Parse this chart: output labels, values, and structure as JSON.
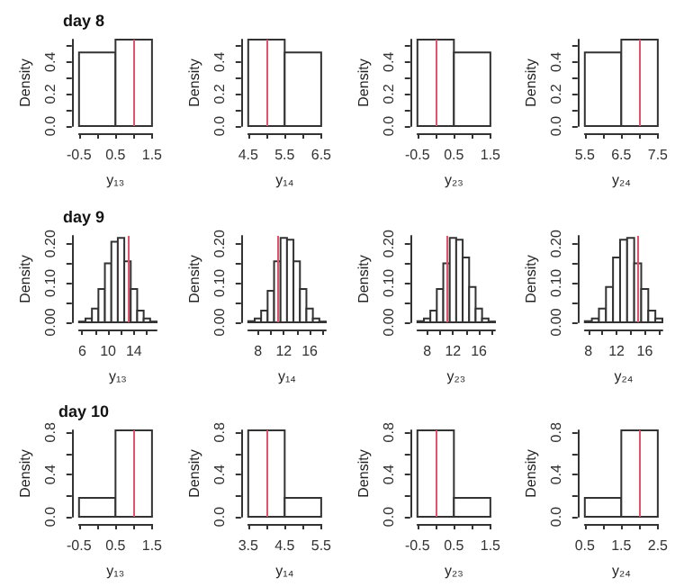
{
  "chart_data": [
    {
      "type": "histogram",
      "title": "day 8",
      "xlabel": "y₁₃",
      "ylabel": "Density",
      "bins": [
        -0.5,
        0.5,
        1.5
      ],
      "values": [
        0.46,
        0.54
      ],
      "xlim": [
        -0.5,
        1.5
      ],
      "xticks": [
        -0.5,
        {
          "value": 0,
          "label": null
        },
        0.5,
        {
          "value": 1,
          "label": null
        },
        1.5
      ],
      "ylim": [
        0,
        0.54
      ],
      "yticks": [
        {
          "value": 0,
          "label": "0.0"
        },
        {
          "value": 0.1,
          "label": null
        },
        {
          "value": 0.2,
          "label": "0.2"
        },
        {
          "value": 0.3,
          "label": null
        },
        {
          "value": 0.4,
          "label": "0.4"
        },
        {
          "value": 0.5,
          "label": null
        }
      ],
      "ref_lines": [
        {
          "axis": "x",
          "value": 1,
          "color": "#df536b"
        }
      ]
    },
    {
      "type": "histogram",
      "xlabel": "y₁₄",
      "ylabel": "Density",
      "bins": [
        4.5,
        5.5,
        6.5
      ],
      "values": [
        0.54,
        0.46
      ],
      "xlim": [
        4.5,
        6.5
      ],
      "xticks": [
        4.5,
        {
          "value": 5,
          "label": null
        },
        5.5,
        {
          "value": 6,
          "label": null
        },
        6.5
      ],
      "ylim": [
        0,
        0.54
      ],
      "yticks": [
        {
          "value": 0,
          "label": "0.0"
        },
        {
          "value": 0.1,
          "label": null
        },
        {
          "value": 0.2,
          "label": "0.2"
        },
        {
          "value": 0.3,
          "label": null
        },
        {
          "value": 0.4,
          "label": "0.4"
        },
        {
          "value": 0.5,
          "label": null
        }
      ],
      "ref_lines": [
        {
          "axis": "x",
          "value": 5,
          "color": "#df536b"
        }
      ]
    },
    {
      "type": "histogram",
      "xlabel": "y₂₃",
      "ylabel": "Density",
      "bins": [
        -0.5,
        0.5,
        1.5
      ],
      "values": [
        0.54,
        0.46
      ],
      "xlim": [
        -0.5,
        1.5
      ],
      "xticks": [
        -0.5,
        {
          "value": 0,
          "label": null
        },
        0.5,
        {
          "value": 1,
          "label": null
        },
        1.5
      ],
      "ylim": [
        0,
        0.54
      ],
      "yticks": [
        {
          "value": 0,
          "label": "0.0"
        },
        {
          "value": 0.1,
          "label": null
        },
        {
          "value": 0.2,
          "label": "0.2"
        },
        {
          "value": 0.3,
          "label": null
        },
        {
          "value": 0.4,
          "label": "0.4"
        },
        {
          "value": 0.5,
          "label": null
        }
      ],
      "ref_lines": [
        {
          "axis": "x",
          "value": 0,
          "color": "#df536b"
        }
      ]
    },
    {
      "type": "histogram",
      "xlabel": "y₂₄",
      "ylabel": "Density",
      "bins": [
        5.5,
        6.5,
        7.5
      ],
      "values": [
        0.46,
        0.54
      ],
      "xlim": [
        5.5,
        7.5
      ],
      "xticks": [
        5.5,
        {
          "value": 6,
          "label": null
        },
        6.5,
        {
          "value": 7,
          "label": null
        },
        7.5
      ],
      "ylim": [
        0,
        0.54
      ],
      "yticks": [
        {
          "value": 0,
          "label": "0.0"
        },
        {
          "value": 0.1,
          "label": null
        },
        {
          "value": 0.2,
          "label": "0.2"
        },
        {
          "value": 0.3,
          "label": null
        },
        {
          "value": 0.4,
          "label": "0.4"
        },
        {
          "value": 0.5,
          "label": null
        }
      ],
      "ref_lines": [
        {
          "axis": "x",
          "value": 7,
          "color": "#df536b"
        }
      ]
    },
    {
      "type": "histogram",
      "title": "day 9",
      "xlabel": "y₁₃",
      "ylabel": "Density",
      "bins": [
        5.5,
        6.5,
        7.5,
        8.5,
        9.5,
        10.5,
        11.5,
        12.5,
        13.5,
        14.5,
        15.5,
        16.5,
        17.5
      ],
      "values": [
        0.002,
        0.01,
        0.035,
        0.085,
        0.15,
        0.205,
        0.215,
        0.155,
        0.085,
        0.03,
        0.01,
        0.002
      ],
      "xlim": [
        5.5,
        17.5
      ],
      "xticks": [
        6,
        {
          "value": 8,
          "label": null
        },
        10,
        {
          "value": 12,
          "label": null
        },
        14,
        {
          "value": 16,
          "label": null
        }
      ],
      "ylim": [
        0,
        0.22
      ],
      "yticks": [
        {
          "value": 0,
          "label": "0.00"
        },
        {
          "value": 0.05,
          "label": null
        },
        {
          "value": 0.1,
          "label": "0.10"
        },
        {
          "value": 0.15,
          "label": null
        },
        {
          "value": 0.2,
          "label": "0.20"
        }
      ],
      "ref_lines": [
        {
          "axis": "x",
          "value": 13,
          "color": "#df536b"
        }
      ]
    },
    {
      "type": "histogram",
      "xlabel": "y₁₄",
      "ylabel": "Density",
      "bins": [
        6.5,
        7.5,
        8.5,
        9.5,
        10.5,
        11.5,
        12.5,
        13.5,
        14.5,
        15.5,
        16.5,
        17.5,
        18.5
      ],
      "values": [
        0.003,
        0.01,
        0.03,
        0.08,
        0.155,
        0.215,
        0.21,
        0.155,
        0.085,
        0.035,
        0.01,
        0.002
      ],
      "xlim": [
        6.5,
        18.5
      ],
      "xticks": [
        8,
        {
          "value": 10,
          "label": null
        },
        12,
        {
          "value": 14,
          "label": null
        },
        16,
        {
          "value": 18,
          "label": null
        }
      ],
      "ylim": [
        0,
        0.22
      ],
      "yticks": [
        {
          "value": 0,
          "label": "0.00"
        },
        {
          "value": 0.05,
          "label": null
        },
        {
          "value": 0.1,
          "label": "0.10"
        },
        {
          "value": 0.15,
          "label": null
        },
        {
          "value": 0.2,
          "label": "0.20"
        }
      ],
      "ref_lines": [
        {
          "axis": "x",
          "value": 11,
          "color": "#df536b"
        }
      ]
    },
    {
      "type": "histogram",
      "xlabel": "y₂₃",
      "ylabel": "Density",
      "bins": [
        6.5,
        7.5,
        8.5,
        9.5,
        10.5,
        11.5,
        12.5,
        13.5,
        14.5,
        15.5,
        16.5,
        17.5,
        18.5
      ],
      "values": [
        0.003,
        0.01,
        0.03,
        0.085,
        0.15,
        0.215,
        0.21,
        0.165,
        0.09,
        0.035,
        0.01,
        0.002
      ],
      "xlim": [
        6.5,
        18.5
      ],
      "xticks": [
        8,
        {
          "value": 10,
          "label": null
        },
        12,
        {
          "value": 14,
          "label": null
        },
        16,
        {
          "value": 18,
          "label": null
        }
      ],
      "ylim": [
        0,
        0.22
      ],
      "yticks": [
        {
          "value": 0,
          "label": "0.00"
        },
        {
          "value": 0.05,
          "label": null
        },
        {
          "value": 0.1,
          "label": "0.10"
        },
        {
          "value": 0.15,
          "label": null
        },
        {
          "value": 0.2,
          "label": "0.20"
        }
      ],
      "ref_lines": [
        {
          "axis": "x",
          "value": 11,
          "color": "#df536b"
        }
      ]
    },
    {
      "type": "histogram",
      "xlabel": "y₂₄",
      "ylabel": "Density",
      "bins": [
        7.5,
        8.5,
        9.5,
        10.5,
        11.5,
        12.5,
        13.5,
        14.5,
        15.5,
        16.5,
        17.5,
        18.5
      ],
      "values": [
        0.003,
        0.01,
        0.035,
        0.09,
        0.165,
        0.21,
        0.215,
        0.15,
        0.085,
        0.03,
        0.01
      ],
      "xlim": [
        7.5,
        18.5
      ],
      "xticks": [
        8,
        {
          "value": 10,
          "label": null
        },
        12,
        {
          "value": 14,
          "label": null
        },
        16,
        {
          "value": 18,
          "label": null
        }
      ],
      "ylim": [
        0,
        0.22
      ],
      "yticks": [
        {
          "value": 0,
          "label": "0.00"
        },
        {
          "value": 0.05,
          "label": null
        },
        {
          "value": 0.1,
          "label": "0.10"
        },
        {
          "value": 0.15,
          "label": null
        },
        {
          "value": 0.2,
          "label": "0.20"
        }
      ],
      "ref_lines": [
        {
          "axis": "x",
          "value": 15,
          "color": "#df536b"
        }
      ]
    },
    {
      "type": "histogram",
      "title": "day 10",
      "xlabel": "y₁₃",
      "ylabel": "Density",
      "bins": [
        -0.5,
        0.5,
        1.5
      ],
      "values": [
        0.18,
        0.82
      ],
      "xlim": [
        -0.5,
        1.5
      ],
      "xticks": [
        -0.5,
        {
          "value": 0,
          "label": null
        },
        0.5,
        {
          "value": 1,
          "label": null
        },
        1.5
      ],
      "ylim": [
        0,
        0.82
      ],
      "yticks": [
        {
          "value": 0,
          "label": "0.0"
        },
        {
          "value": 0.2,
          "label": null
        },
        {
          "value": 0.4,
          "label": "0.4"
        },
        {
          "value": 0.6,
          "label": null
        },
        {
          "value": 0.8,
          "label": "0.8"
        }
      ],
      "ref_lines": [
        {
          "axis": "x",
          "value": 1,
          "color": "#df536b"
        }
      ]
    },
    {
      "type": "histogram",
      "xlabel": "y₁₄",
      "ylabel": "Density",
      "bins": [
        3.5,
        4.5,
        5.5
      ],
      "values": [
        0.82,
        0.18
      ],
      "xlim": [
        3.5,
        5.5
      ],
      "xticks": [
        3.5,
        {
          "value": 4,
          "label": null
        },
        4.5,
        {
          "value": 5,
          "label": null
        },
        5.5
      ],
      "ylim": [
        0,
        0.82
      ],
      "yticks": [
        {
          "value": 0,
          "label": "0.0"
        },
        {
          "value": 0.2,
          "label": null
        },
        {
          "value": 0.4,
          "label": "0.4"
        },
        {
          "value": 0.6,
          "label": null
        },
        {
          "value": 0.8,
          "label": "0.8"
        }
      ],
      "ref_lines": [
        {
          "axis": "x",
          "value": 4,
          "color": "#df536b"
        }
      ]
    },
    {
      "type": "histogram",
      "xlabel": "y₂₃",
      "ylabel": "Density",
      "bins": [
        -0.5,
        0.5,
        1.5
      ],
      "values": [
        0.82,
        0.18
      ],
      "xlim": [
        -0.5,
        1.5
      ],
      "xticks": [
        -0.5,
        {
          "value": 0,
          "label": null
        },
        0.5,
        {
          "value": 1,
          "label": null
        },
        1.5
      ],
      "ylim": [
        0,
        0.82
      ],
      "yticks": [
        {
          "value": 0,
          "label": "0.0"
        },
        {
          "value": 0.2,
          "label": null
        },
        {
          "value": 0.4,
          "label": "0.4"
        },
        {
          "value": 0.6,
          "label": null
        },
        {
          "value": 0.8,
          "label": "0.8"
        }
      ],
      "ref_lines": [
        {
          "axis": "x",
          "value": 0,
          "color": "#df536b"
        }
      ]
    },
    {
      "type": "histogram",
      "xlabel": "y₂₄",
      "ylabel": "Density",
      "bins": [
        0.5,
        1.5,
        2.5
      ],
      "values": [
        0.18,
        0.82
      ],
      "xlim": [
        0.5,
        2.5
      ],
      "xticks": [
        0.5,
        {
          "value": 1,
          "label": null
        },
        1.5,
        {
          "value": 2,
          "label": null
        },
        2.5
      ],
      "ylim": [
        0,
        0.82
      ],
      "yticks": [
        {
          "value": 0,
          "label": "0.0"
        },
        {
          "value": 0.2,
          "label": null
        },
        {
          "value": 0.4,
          "label": "0.4"
        },
        {
          "value": 0.6,
          "label": null
        },
        {
          "value": 0.8,
          "label": "0.8"
        }
      ],
      "ref_lines": [
        {
          "axis": "x",
          "value": 2,
          "color": "#df536b"
        }
      ]
    }
  ]
}
